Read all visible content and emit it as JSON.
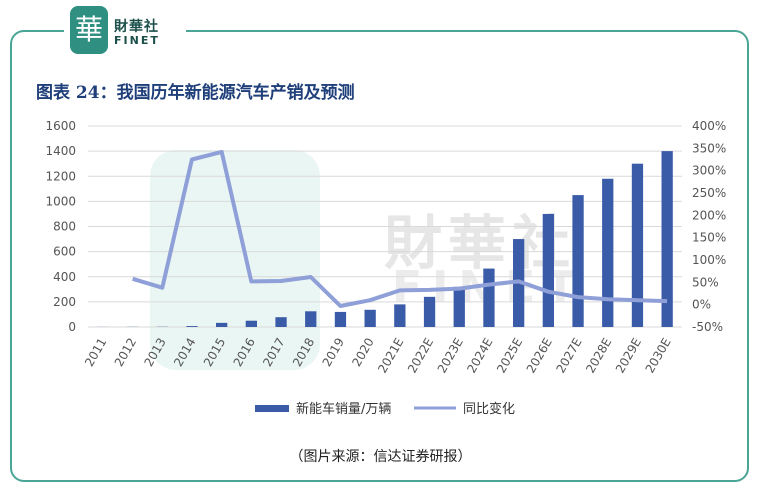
{
  "brand": {
    "badge": "華",
    "cn": "財華社",
    "en": "FINET"
  },
  "watermark": {
    "cn": "財華社",
    "en": "FINET"
  },
  "chart_data": {
    "type": "bar+line",
    "title": "图表 24：我国历年新能源汽车产销及预测",
    "categories": [
      "2011",
      "2012",
      "2013",
      "2014",
      "2015",
      "2016",
      "2017",
      "2018",
      "2019",
      "2020",
      "2021E",
      "2022E",
      "2023E",
      "2024E",
      "2025E",
      "2026E",
      "2027E",
      "2028E",
      "2029E",
      "2030E"
    ],
    "left_axis": {
      "ylim": [
        0,
        1600
      ],
      "ticks": [
        "0",
        "200",
        "400",
        "600",
        "800",
        "1000",
        "1200",
        "1400",
        "1600"
      ]
    },
    "right_axis": {
      "ylim": [
        -50,
        400
      ],
      "ticks": [
        "-50%",
        "0%",
        "50%",
        "100%",
        "150%",
        "200%",
        "250%",
        "300%",
        "350%",
        "400%"
      ]
    },
    "series": [
      {
        "name": "新能车销量/万辆",
        "type": "bar",
        "color": "#3a5ba8",
        "values": [
          0.8,
          1.3,
          1.8,
          7.5,
          33,
          50,
          78,
          125,
          120,
          137,
          180,
          240,
          320,
          465,
          700,
          900,
          1050,
          1180,
          1300,
          1400
        ]
      },
      {
        "name": "同比变化",
        "type": "line",
        "color": "#8f9fd8",
        "axis": "right",
        "values": [
          null,
          58,
          38,
          325,
          342,
          52,
          53,
          62,
          -3,
          10,
          32,
          33,
          36,
          45,
          52,
          29,
          17,
          12,
          10,
          8
        ]
      }
    ],
    "legend_position": "bottom",
    "grid": true
  },
  "source": "（图片来源：信达证券研报）"
}
